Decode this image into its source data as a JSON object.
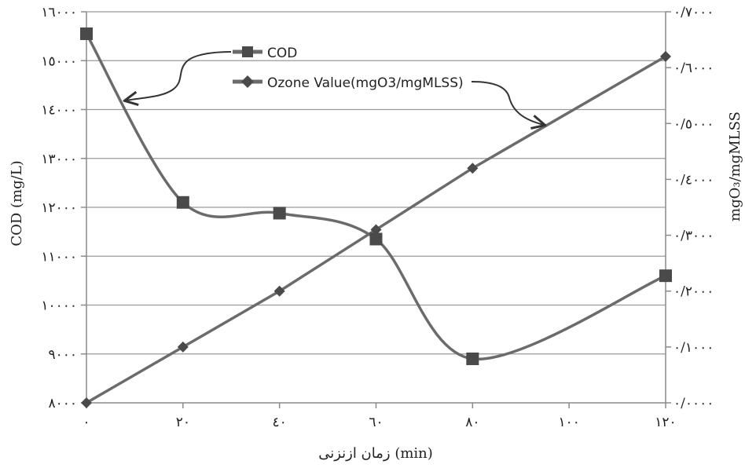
{
  "chart_data": {
    "type": "line",
    "x": [
      0,
      20,
      40,
      60,
      80,
      100,
      120
    ],
    "x_tick_labels": [
      "۰",
      "۲۰",
      "٤۰",
      "٦۰",
      "۸۰",
      "۱۰۰",
      "۱۲۰"
    ],
    "xlim": [
      0,
      120
    ],
    "xlabel": "(min) زمان ازنزنی",
    "ylabel_left": "COD (mg/L)",
    "ylim_left": [
      8000,
      16000
    ],
    "y_left_tick_values": [
      8000,
      9000,
      10000,
      11000,
      12000,
      13000,
      14000,
      15000,
      16000
    ],
    "y_left_tick_labels": [
      "۸۰۰۰",
      "۹۰۰۰",
      "۱۰۰۰۰",
      "۱۱۰۰۰",
      "۱۲۰۰۰",
      "۱۳۰۰۰",
      "١٤۰۰۰",
      "۱٥۰۰۰",
      "۱٦۰۰۰"
    ],
    "ylabel_right": "mgO₃/mgMLSS",
    "ylim_right": [
      0,
      0.7
    ],
    "y_right_tick_values": [
      0,
      0.1,
      0.2,
      0.3,
      0.4,
      0.5,
      0.6,
      0.7
    ],
    "y_right_tick_labels": [
      "۰/۰۰۰۰",
      "۰/۱۰۰۰",
      "۰/۲۰۰۰",
      "۰/۳۰۰۰",
      "۰/٤۰۰۰",
      "۰/٥۰۰۰",
      "۰/٦۰۰۰",
      "۰/۷۰۰۰"
    ],
    "grid": true,
    "series": [
      {
        "name": "COD",
        "axis": "left",
        "marker": "square",
        "x": [
          0,
          20,
          40,
          60,
          80,
          120
        ],
        "values": [
          15550,
          12100,
          11880,
          11350,
          8900,
          10600
        ]
      },
      {
        "name": "Ozone Value(mgO3/mgMLSS)",
        "axis": "right",
        "marker": "diamond",
        "x": [
          0,
          20,
          40,
          60,
          80,
          120
        ],
        "values": [
          0,
          0.1,
          0.2,
          0.31,
          0.42,
          0.62
        ]
      }
    ],
    "colors": {
      "line": "#6b6b6b",
      "marker": "#4a4a4a",
      "grid": "#9a9a9a",
      "text": "#222222"
    }
  }
}
